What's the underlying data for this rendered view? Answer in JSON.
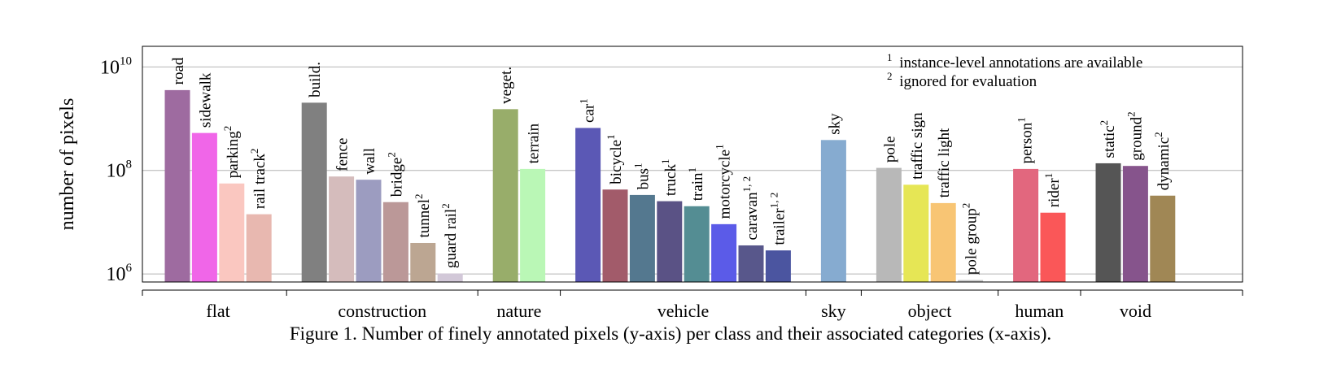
{
  "chart_data": {
    "type": "bar",
    "ylabel": "number of pixels",
    "yscale": "log",
    "ylim": [
      700000,
      25000000000
    ],
    "yticks": [
      {
        "base": "10",
        "exp": "6"
      },
      {
        "base": "10",
        "exp": "8"
      },
      {
        "base": "10",
        "exp": "10"
      }
    ],
    "grid": true,
    "notes": [
      {
        "sup": "1",
        "text": "instance-level annotations are available"
      },
      {
        "sup": "2",
        "text": "ignored for evaluation"
      }
    ],
    "categories": [
      {
        "name": "flat",
        "bars": [
          {
            "label": "road",
            "sup": "",
            "value": 3500000000,
            "color": "#9e6ba0"
          },
          {
            "label": "sidewalk",
            "sup": "",
            "value": 520000000,
            "color": "#f066e8"
          },
          {
            "label": "parking",
            "sup": "2",
            "value": 55000000,
            "color": "#fac7c0"
          },
          {
            "label": "rail track",
            "sup": "2",
            "value": 14000000,
            "color": "#e8b8b0"
          }
        ]
      },
      {
        "name": "construction",
        "bars": [
          {
            "label": "build.",
            "sup": "",
            "value": 2000000000,
            "color": "#808080"
          },
          {
            "label": "fence",
            "sup": "",
            "value": 75000000,
            "color": "#d5bcbc"
          },
          {
            "label": "wall",
            "sup": "",
            "value": 65000000,
            "color": "#9c9cc0"
          },
          {
            "label": "bridge",
            "sup": "2",
            "value": 24000000,
            "color": "#bb9898"
          },
          {
            "label": "tunnel",
            "sup": "2",
            "value": 3900000,
            "color": "#bca692"
          },
          {
            "label": "guard rail",
            "sup": "2",
            "value": 1000000,
            "color": "#d2c8d8"
          }
        ]
      },
      {
        "name": "nature",
        "bars": [
          {
            "label": "veget.",
            "sup": "",
            "value": 1500000000,
            "color": "#98ad6a"
          },
          {
            "label": "terrain",
            "sup": "",
            "value": 105000000,
            "color": "#baf7b6"
          }
        ]
      },
      {
        "name": "vehicle",
        "bars": [
          {
            "label": "car",
            "sup": "1",
            "value": 650000000,
            "color": "#5b58b5"
          },
          {
            "label": "bicycle",
            "sup": "1",
            "value": 42000000,
            "color": "#a25b6a"
          },
          {
            "label": "bus",
            "sup": "1",
            "value": 33000000,
            "color": "#54788f"
          },
          {
            "label": "truck",
            "sup": "1",
            "value": 25000000,
            "color": "#5a5285"
          },
          {
            "label": "train",
            "sup": "1",
            "value": 20000000,
            "color": "#548d93"
          },
          {
            "label": "motorcycle",
            "sup": "1",
            "value": 9000000,
            "color": "#5b5be8"
          },
          {
            "label": "caravan",
            "sup": "1, 2",
            "value": 3500000,
            "color": "#58578b"
          },
          {
            "label": "trailer",
            "sup": "1, 2",
            "value": 2800000,
            "color": "#4b55a0"
          }
        ]
      },
      {
        "name": "sky",
        "bars": [
          {
            "label": "sky",
            "sup": "",
            "value": 380000000,
            "color": "#86abd0"
          }
        ]
      },
      {
        "name": "object",
        "bars": [
          {
            "label": "pole",
            "sup": "",
            "value": 110000000,
            "color": "#b8b8b8"
          },
          {
            "label": "traffic sign",
            "sup": "",
            "value": 52000000,
            "color": "#e6e655"
          },
          {
            "label": "traffic light",
            "sup": "",
            "value": 23000000,
            "color": "#f8c574"
          },
          {
            "label": "pole group",
            "sup": "2",
            "value": 750000,
            "color": "#c8c8c8"
          }
        ]
      },
      {
        "name": "human",
        "bars": [
          {
            "label": "person",
            "sup": "1",
            "value": 105000000,
            "color": "#e2677e"
          },
          {
            "label": "rider",
            "sup": "1",
            "value": 15000000,
            "color": "#fa5758"
          }
        ]
      },
      {
        "name": "void",
        "bars": [
          {
            "label": "static",
            "sup": "2",
            "value": 135000000,
            "color": "#555555"
          },
          {
            "label": "ground",
            "sup": "2",
            "value": 120000000,
            "color": "#86548c"
          },
          {
            "label": "dynamic",
            "sup": "2",
            "value": 32000000,
            "color": "#a08755"
          }
        ]
      }
    ]
  },
  "caption": "Figure 1. Number of finely annotated pixels (y-axis) per class and their associated categories (x-axis)."
}
